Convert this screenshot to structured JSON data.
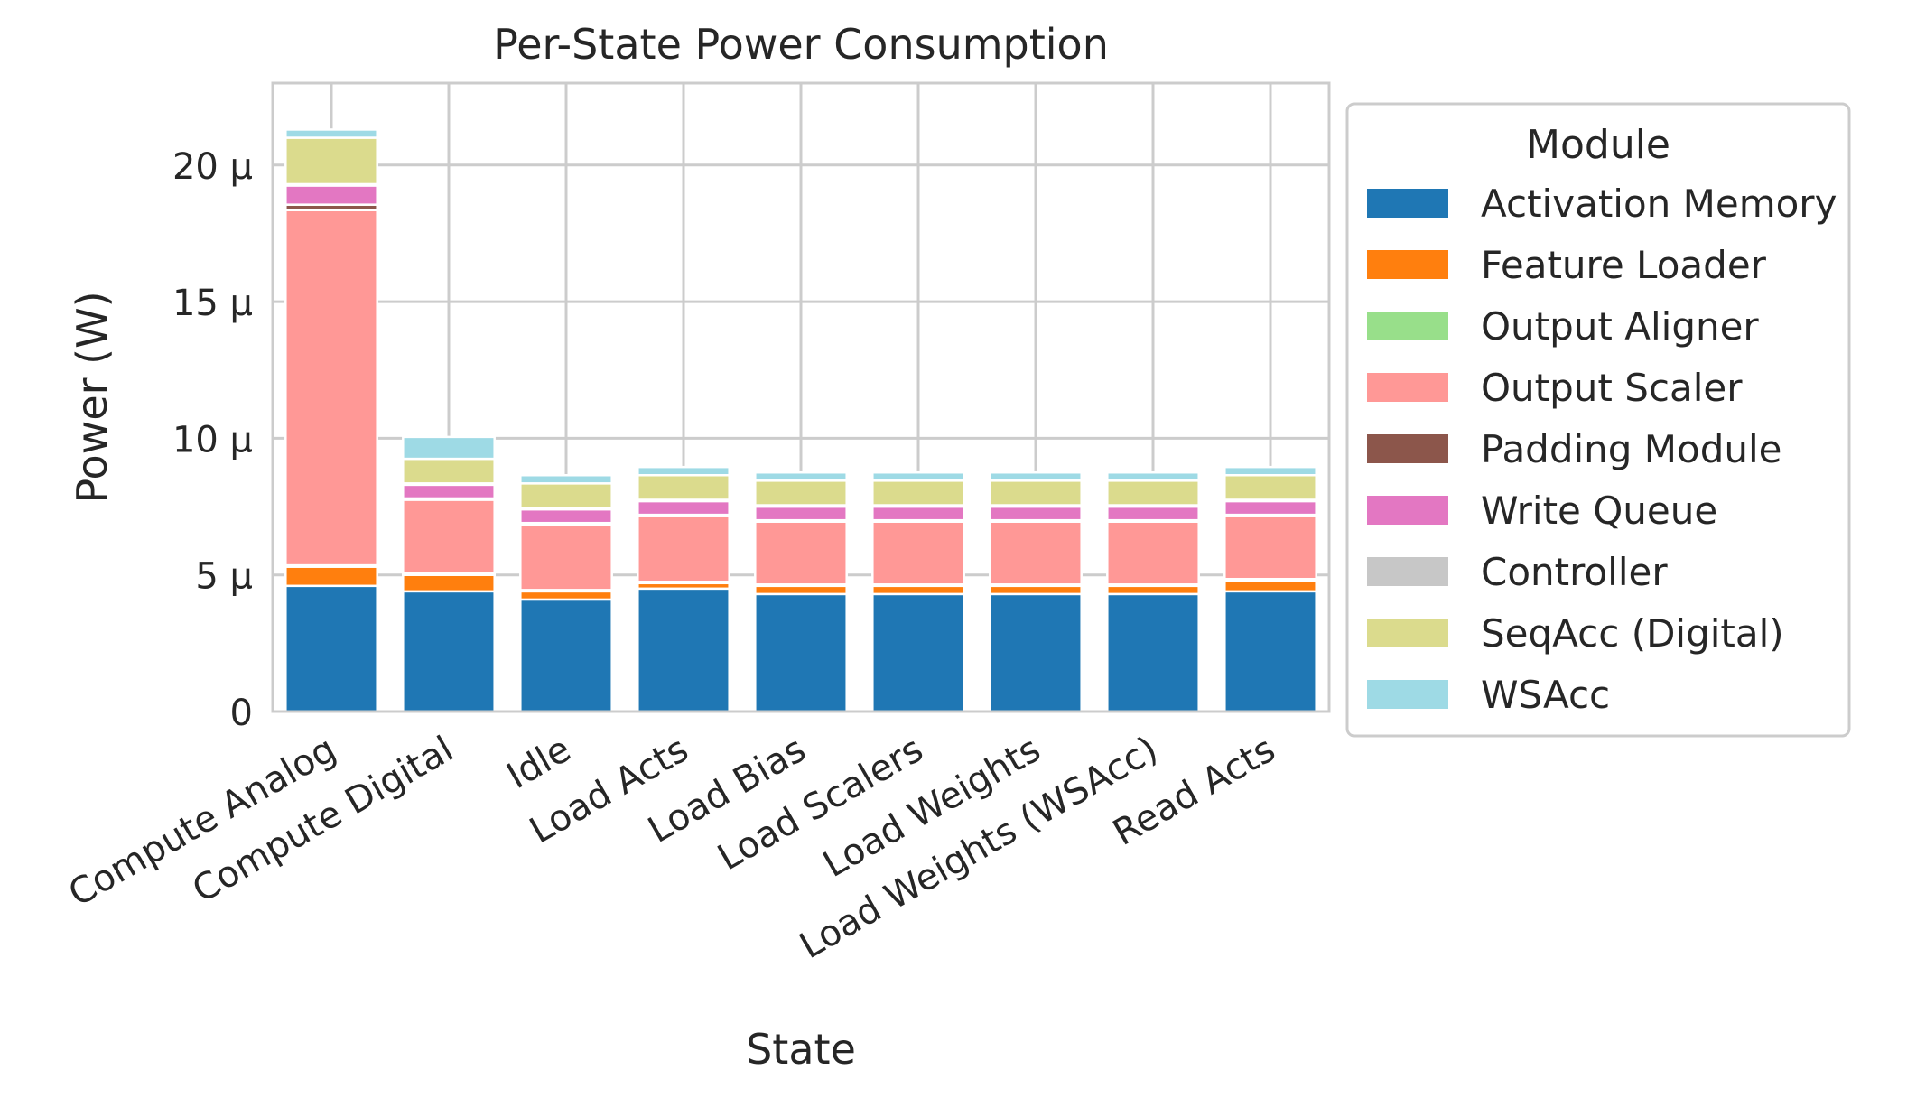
{
  "chart_data": {
    "type": "bar",
    "stacked": true,
    "title": "Per-State Power Consumption",
    "xlabel": "State",
    "ylabel": "Power (W)",
    "ylim": [
      0,
      2.3e-05
    ],
    "yticks": [
      {
        "value": 0,
        "label": "0"
      },
      {
        "value": 5e-06,
        "label": "5 μ"
      },
      {
        "value": 1e-05,
        "label": "10 μ"
      },
      {
        "value": 1.5e-05,
        "label": "15 μ"
      },
      {
        "value": 2e-05,
        "label": "20 μ"
      }
    ],
    "grid": true,
    "legend": {
      "title": "Module",
      "placement": "outside-right"
    },
    "categories": [
      "Compute Analog",
      "Compute Digital",
      "Idle",
      "Load Acts",
      "Load Bias",
      "Load Scalers",
      "Load Weights",
      "Load Weights (WSAcc)",
      "Read Acts"
    ],
    "series": [
      {
        "name": "Activation Memory",
        "color": "#1f77b4",
        "values": [
          4.6e-06,
          4.4e-06,
          4.1e-06,
          4.5e-06,
          4.3e-06,
          4.3e-06,
          4.3e-06,
          4.3e-06,
          4.4e-06
        ]
      },
      {
        "name": "Feature Loader",
        "color": "#ff7f0e",
        "values": [
          7e-07,
          6e-07,
          3e-07,
          2e-07,
          3e-07,
          3e-07,
          3e-07,
          3e-07,
          4e-07
        ]
      },
      {
        "name": "Output Aligner",
        "color": "#98df8a",
        "values": [
          5e-08,
          5e-08,
          5e-08,
          5e-08,
          5e-08,
          5e-08,
          5e-08,
          5e-08,
          5e-08
        ]
      },
      {
        "name": "Output Scaler",
        "color": "#ff9896",
        "values": [
          1.3e-05,
          2.7e-06,
          2.4e-06,
          2.4e-06,
          2.3e-06,
          2.3e-06,
          2.3e-06,
          2.3e-06,
          2.3e-06
        ]
      },
      {
        "name": "Padding Module",
        "color": "#8c564b",
        "values": [
          2e-07,
          5e-08,
          5e-08,
          5e-08,
          5e-08,
          5e-08,
          5e-08,
          5e-08,
          5e-08
        ]
      },
      {
        "name": "Write Queue",
        "color": "#e377c2",
        "values": [
          7e-07,
          5e-07,
          5e-07,
          5e-07,
          5e-07,
          5e-07,
          5e-07,
          5e-07,
          5e-07
        ]
      },
      {
        "name": "Controller",
        "color": "#c7c7c7",
        "values": [
          5e-08,
          5e-08,
          5e-08,
          5e-08,
          5e-08,
          5e-08,
          5e-08,
          5e-08,
          5e-08
        ]
      },
      {
        "name": "SeqAcc (Digital)",
        "color": "#dbdb8d",
        "values": [
          1.7e-06,
          9e-07,
          9e-07,
          9e-07,
          9e-07,
          9e-07,
          9e-07,
          9e-07,
          9e-07
        ]
      },
      {
        "name": "WSAcc",
        "color": "#9edae5",
        "values": [
          3e-07,
          8e-07,
          3e-07,
          3e-07,
          3e-07,
          3e-07,
          3e-07,
          3e-07,
          3e-07
        ]
      }
    ]
  }
}
